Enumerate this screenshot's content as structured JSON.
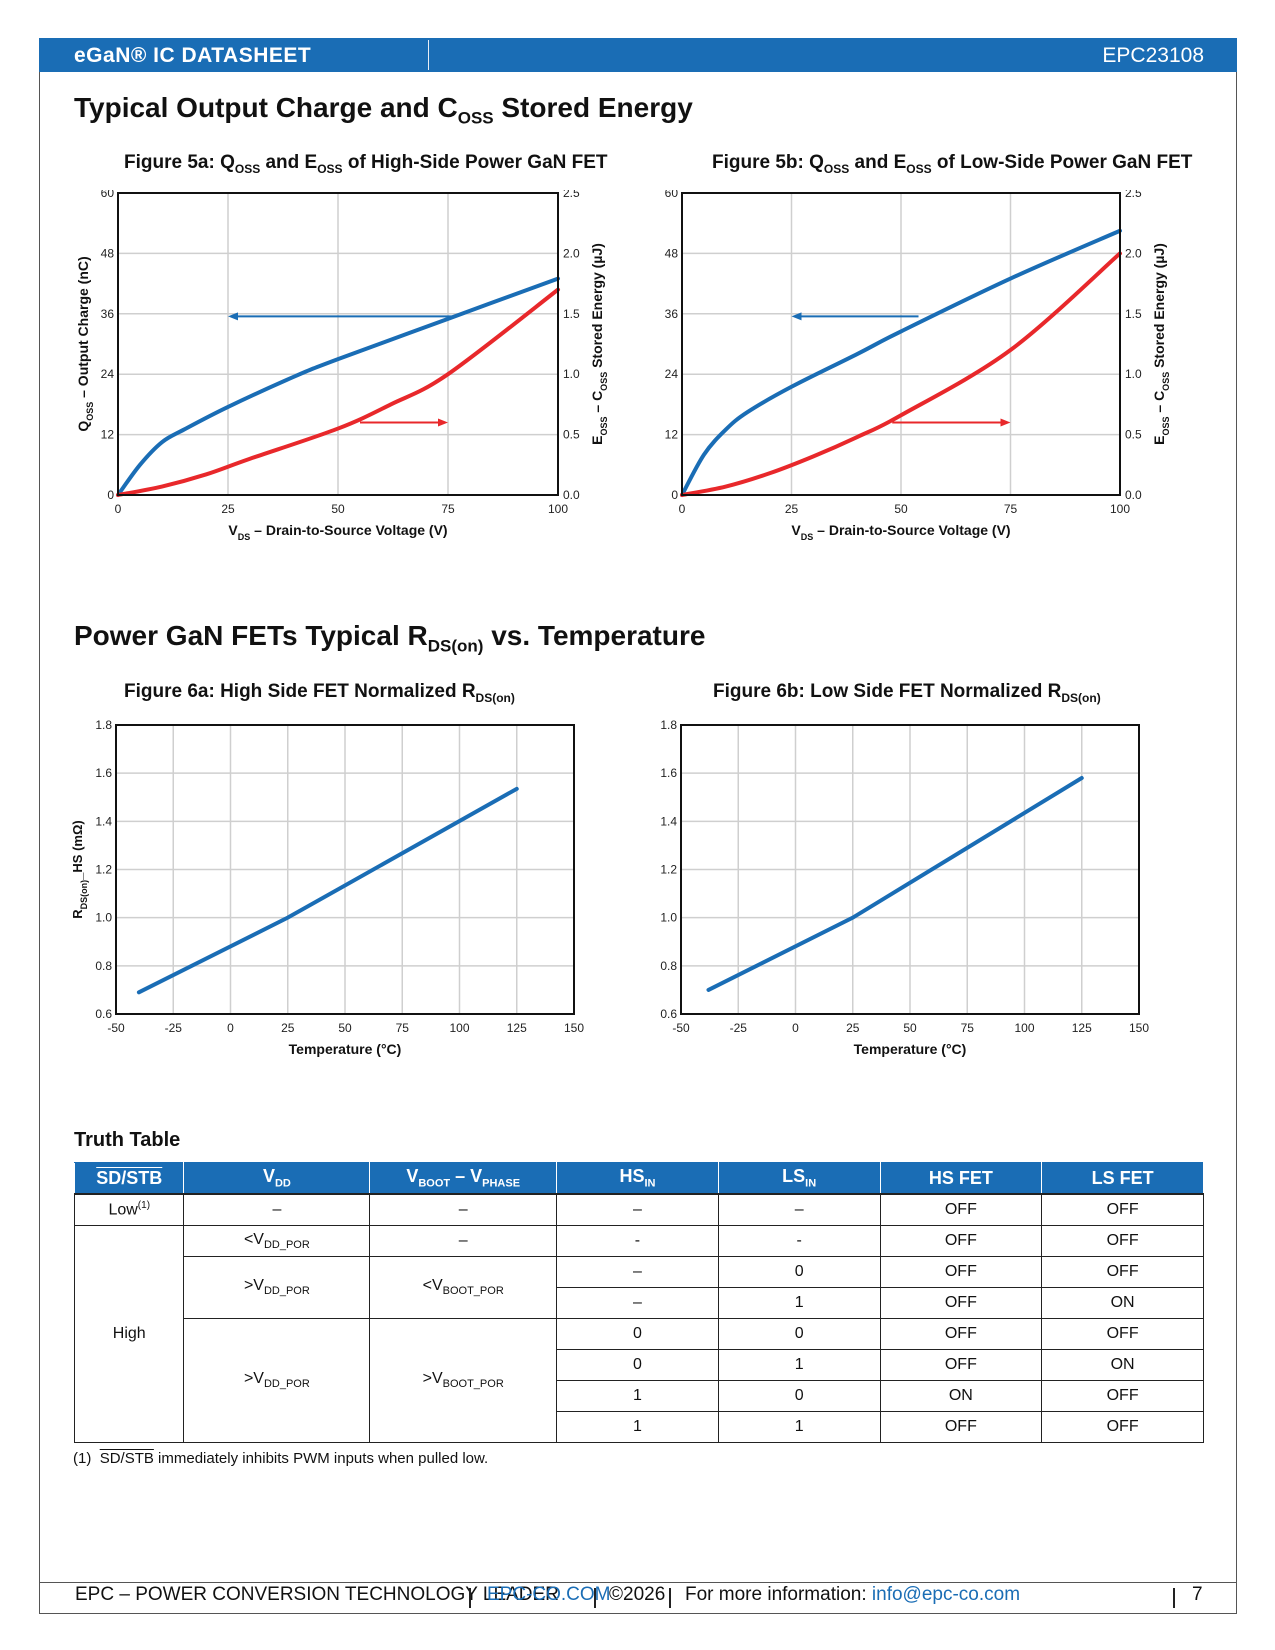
{
  "header": {
    "left": "eGaN® IC DATASHEET",
    "right": "EPC23108"
  },
  "section1": {
    "title_a": "Typical Output Charge and C",
    "title_sub": "OSS",
    "title_b": " Stored Energy"
  },
  "fig5a": {
    "title_a": "Figure 5a: Q",
    "sub1": "OSS",
    "title_b": " and E",
    "sub2": "OSS",
    "title_c": " of High-Side Power GaN FET"
  },
  "fig5b": {
    "title_a": "Figure 5b: Q",
    "sub1": "OSS",
    "title_b": " and E",
    "sub2": "OSS",
    "title_c": " of Low-Side Power GaN FET"
  },
  "section2": {
    "title_a": "Power GaN FETs Typical R",
    "title_sub": "DS(on)",
    "title_b": " vs. Temperature"
  },
  "fig6a": {
    "title_a": "Figure 6a: High Side FET Normalized R",
    "sub": "DS(on)"
  },
  "fig6b": {
    "title_a": "Figure 6b: Low Side FET Normalized R",
    "sub": "DS(on)"
  },
  "chart_labels": {
    "qoss_a": "Q",
    "qoss_sub": "OSS",
    "qoss_b": " – Output Charge (nC)",
    "eoss_a": "E",
    "eoss_sub1": "OSS",
    "eoss_b": " – C",
    "eoss_sub2": "OSS",
    "eoss_c": " Stored Energy (µJ)",
    "vds_a": "V",
    "vds_sub": "DS",
    "vds_b": " – Drain-to-Source Voltage (V)",
    "temp": "Temperature (°C)",
    "rds_a": "R",
    "rds_sub": "DS(on)",
    "rds_b": "_HS (mΩ)"
  },
  "chart_data": [
    {
      "type": "line",
      "title": "Figure 5a: QOSS and EOSS of High-Side Power GaN FET",
      "xlabel": "VDS – Drain-to-Source Voltage (V)",
      "ylabel": "QOSS – Output Charge (nC)",
      "y2label": "EOSS – COSS Stored Energy (µJ)",
      "xlim": [
        0,
        100
      ],
      "ylim": [
        0,
        60
      ],
      "y2lim": [
        0,
        2.5
      ],
      "x_ticks": [
        "0",
        "25",
        "50",
        "75",
        "100"
      ],
      "y_ticks": [
        "0",
        "12",
        "24",
        "36",
        "48",
        "60"
      ],
      "y2_ticks": [
        "0.0",
        "0.5",
        "1.0",
        "1.5",
        "2.0",
        "2.5"
      ],
      "grid": true,
      "series": [
        {
          "axis": "left",
          "color": "#1a6db5",
          "x": [
            0,
            5,
            10,
            15,
            25,
            40,
            50,
            75,
            100
          ],
          "y": [
            0,
            6,
            10.5,
            13,
            17.5,
            23.5,
            27,
            35,
            43
          ]
        },
        {
          "axis": "right",
          "color": "#e8282b",
          "x": [
            0,
            10,
            20,
            30,
            50,
            62,
            75,
            100
          ],
          "y": [
            0,
            0.07,
            0.17,
            0.3,
            0.55,
            0.75,
            1.0,
            1.7
          ]
        }
      ],
      "arrows": [
        {
          "axis": "left",
          "x_from": 76,
          "x_to": 25,
          "y": 35.5
        },
        {
          "axis": "right",
          "x_from": 55,
          "x_to": 75,
          "y": 0.6
        }
      ]
    },
    {
      "type": "line",
      "title": "Figure 5b: QOSS and EOSS of Low-Side Power GaN FET",
      "xlabel": "VDS – Drain-to-Source Voltage (V)",
      "ylabel": "QOSS – Output Charge (nC)",
      "y2label": "EOSS – COSS Stored Energy (µJ)",
      "xlim": [
        0,
        100
      ],
      "ylim": [
        0,
        60
      ],
      "y2lim": [
        0,
        2.5
      ],
      "x_ticks": [
        "0",
        "25",
        "50",
        "75",
        "100"
      ],
      "y_ticks": [
        "0",
        "12",
        "24",
        "36",
        "48",
        "60"
      ],
      "y2_ticks": [
        "0.0",
        "0.5",
        "1.0",
        "1.5",
        "2.0",
        "2.5"
      ],
      "grid": true,
      "series": [
        {
          "axis": "left",
          "color": "#1a6db5",
          "x": [
            0,
            5,
            10,
            15,
            25,
            40,
            50,
            75,
            100
          ],
          "y": [
            0,
            8,
            13,
            16.5,
            21.5,
            28,
            32.5,
            43,
            52.5
          ]
        },
        {
          "axis": "right",
          "color": "#e8282b",
          "x": [
            0,
            10,
            20,
            30,
            40,
            50,
            75,
            100
          ],
          "y": [
            0,
            0.07,
            0.18,
            0.32,
            0.48,
            0.66,
            1.2,
            2.0
          ]
        }
      ],
      "arrows": [
        {
          "axis": "left",
          "x_from": 54,
          "x_to": 25,
          "y": 35.5
        },
        {
          "axis": "right",
          "x_from": 48,
          "x_to": 75,
          "y": 0.6
        }
      ]
    },
    {
      "type": "line",
      "title": "Figure 6a: High Side FET Normalized RDS(on)",
      "xlabel": "Temperature (°C)",
      "ylabel": "RDS(on)_HS (mΩ)",
      "xlim": [
        -50,
        150
      ],
      "ylim": [
        0.6,
        1.8
      ],
      "x_ticks": [
        "-50",
        "-25",
        "0",
        "25",
        "50",
        "75",
        "100",
        "125",
        "150"
      ],
      "y_ticks": [
        "0.6",
        "0.8",
        "1.0",
        "1.2",
        "1.4",
        "1.6",
        "1.8"
      ],
      "grid": true,
      "series": [
        {
          "color": "#1a6db5",
          "x": [
            -40,
            25,
            125
          ],
          "y": [
            0.69,
            1.0,
            1.535
          ]
        }
      ]
    },
    {
      "type": "line",
      "title": "Figure 6b: Low Side FET Normalized RDS(on)",
      "xlabel": "Temperature (°C)",
      "ylabel": "RDS(on)_HS (mΩ)",
      "xlim": [
        -50,
        150
      ],
      "ylim": [
        0.6,
        1.8
      ],
      "x_ticks": [
        "-50",
        "-25",
        "0",
        "25",
        "50",
        "75",
        "100",
        "125",
        "150"
      ],
      "y_ticks": [
        "0.6",
        "0.8",
        "1.0",
        "1.2",
        "1.4",
        "1.6",
        "1.8"
      ],
      "grid": true,
      "series": [
        {
          "color": "#1a6db5",
          "x": [
            -38,
            25,
            125
          ],
          "y": [
            0.7,
            1.0,
            1.58
          ]
        }
      ]
    }
  ],
  "truth_table": {
    "title": "Truth Table",
    "headers": {
      "sd": "SD/STB",
      "vdd_a": "V",
      "vdd_sub": "DD",
      "vboot_a": "V",
      "vboot_sub1": "BOOT",
      "vboot_b": " – V",
      "vboot_sub2": "PHASE",
      "hs_a": "HS",
      "hs_sub": "IN",
      "ls_a": "LS",
      "ls_sub": "IN",
      "hsfet": "HS FET",
      "lsfet": "LS FET"
    },
    "low": "Low",
    "low_sup": "(1)",
    "high": "High",
    "dash": "–",
    "hyphen": "-",
    "lt_vdd_a": "<V",
    "vdd_por_sub": "DD_POR",
    "gt_vdd_a": ">V",
    "lt_vboot_a": "<V",
    "vboot_por_sub": "BOOT_POR",
    "gt_vboot_a": ">V",
    "rows": [
      {
        "hs": "–",
        "ls": "–",
        "hsfet": "OFF",
        "lsfet": "OFF"
      },
      {
        "hs": "-",
        "ls": "-",
        "hsfet": "OFF",
        "lsfet": "OFF"
      },
      {
        "hs": "–",
        "ls": "0",
        "hsfet": "OFF",
        "lsfet": "OFF"
      },
      {
        "hs": "–",
        "ls": "1",
        "hsfet": "OFF",
        "lsfet": "ON"
      },
      {
        "hs": "0",
        "ls": "0",
        "hsfet": "OFF",
        "lsfet": "OFF"
      },
      {
        "hs": "0",
        "ls": "1",
        "hsfet": "OFF",
        "lsfet": "ON"
      },
      {
        "hs": "1",
        "ls": "0",
        "hsfet": "ON",
        "lsfet": "OFF"
      },
      {
        "hs": "1",
        "ls": "1",
        "hsfet": "OFF",
        "lsfet": "OFF"
      }
    ]
  },
  "footnote": {
    "num": "(1)",
    "sd": "SD/STB",
    "text": " immediately inhibits PWM inputs when pulled low."
  },
  "footer": {
    "company": "EPC – POWER CONVERSION TECHNOLOGY LEADER",
    "site": "EPC-CO.COM",
    "copyright": "©2026",
    "more": "For more information: ",
    "email": "info@epc-co.com",
    "page": "7"
  },
  "colors": {
    "brand": "#1a6db5",
    "red": "#e8282b",
    "grid": "#cfcfcf"
  }
}
